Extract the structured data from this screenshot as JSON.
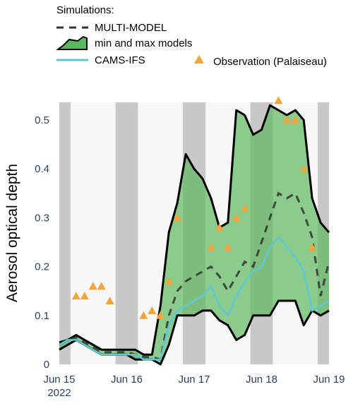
{
  "chart_data": {
    "type": "line",
    "y_label": "Aerosol optical depth",
    "legend_title": "Simulations:",
    "xlim": [
      "2022-06-15T00:00",
      "2022-06-19T00:00"
    ],
    "xticks": [
      {
        "value": "2022-06-15T00:00",
        "label": "Jun 15\n2022"
      },
      {
        "value": "2022-06-16T00:00",
        "label": "Jun 16"
      },
      {
        "value": "2022-06-17T00:00",
        "label": "Jun 17"
      },
      {
        "value": "2022-06-18T00:00",
        "label": "Jun 18"
      },
      {
        "value": "2022-06-19T00:00",
        "label": "Jun 19"
      }
    ],
    "ylim": [
      0,
      0.536
    ],
    "yticks": [
      0,
      0.1,
      0.2,
      0.3,
      0.4,
      0.5
    ],
    "shaded_periods": [
      [
        "2022-06-15T00:00",
        "2022-06-15T04:00"
      ],
      [
        "2022-06-15T20:00",
        "2022-06-16T04:00"
      ],
      [
        "2022-06-16T20:00",
        "2022-06-17T04:00"
      ],
      [
        "2022-06-17T20:00",
        "2022-06-18T04:00"
      ],
      [
        "2022-06-18T20:00",
        "2022-06-19T00:00"
      ]
    ],
    "shade_color": "#c8c8c8",
    "x": [
      "2022-06-15T00:00",
      "2022-06-15T03:00",
      "2022-06-15T06:00",
      "2022-06-15T09:00",
      "2022-06-15T12:00",
      "2022-06-15T15:00",
      "2022-06-15T18:00",
      "2022-06-15T21:00",
      "2022-06-16T00:00",
      "2022-06-16T03:00",
      "2022-06-16T06:00",
      "2022-06-16T09:00",
      "2022-06-16T12:00",
      "2022-06-16T15:00",
      "2022-06-16T18:00",
      "2022-06-16T21:00",
      "2022-06-17T00:00",
      "2022-06-17T03:00",
      "2022-06-17T06:00",
      "2022-06-17T09:00",
      "2022-06-17T12:00",
      "2022-06-17T15:00",
      "2022-06-17T18:00",
      "2022-06-17T21:00",
      "2022-06-18T00:00",
      "2022-06-18T03:00",
      "2022-06-18T06:00",
      "2022-06-18T09:00",
      "2022-06-18T12:00",
      "2022-06-18T15:00",
      "2022-06-18T18:00",
      "2022-06-18T21:00",
      "2022-06-19T00:00"
    ],
    "series": [
      {
        "name": "MULTI-MODEL",
        "kind": "line",
        "dash": true,
        "color": "#333333",
        "values": [
          0.04,
          0.05,
          0.055,
          0.045,
          0.035,
          0.025,
          0.025,
          0.025,
          0.025,
          0.02,
          0.015,
          0.015,
          0.01,
          0.1,
          0.15,
          0.17,
          0.18,
          0.19,
          0.2,
          0.18,
          0.15,
          0.18,
          0.21,
          0.2,
          0.25,
          0.3,
          0.35,
          0.34,
          0.35,
          0.31,
          0.26,
          0.14,
          0.21
        ]
      },
      {
        "name": "min and max models",
        "kind": "band",
        "color": "#5cb85c",
        "line_color": "#000000",
        "upper": [
          0.045,
          0.05,
          0.06,
          0.05,
          0.04,
          0.03,
          0.03,
          0.03,
          0.03,
          0.03,
          0.02,
          0.02,
          0.12,
          0.27,
          0.33,
          0.43,
          0.4,
          0.38,
          0.34,
          0.28,
          0.29,
          0.52,
          0.51,
          0.47,
          0.48,
          0.53,
          0.52,
          0.51,
          0.52,
          0.5,
          0.34,
          0.29,
          0.27
        ],
        "lower": [
          0.03,
          0.04,
          0.05,
          0.04,
          0.03,
          0.02,
          0.02,
          0.02,
          0.02,
          0.01,
          0.01,
          0.01,
          0,
          0.04,
          0.1,
          0.1,
          0.1,
          0.11,
          0.11,
          0.09,
          0.08,
          0.05,
          0.06,
          0.1,
          0.1,
          0.1,
          0.13,
          0.13,
          0.13,
          0.08,
          0.11,
          0.1,
          0.11
        ]
      },
      {
        "name": "CAMS-IFS",
        "kind": "line",
        "color": "#5ec9d6",
        "values": [
          0.04,
          0.05,
          0.05,
          0.04,
          0.03,
          0.02,
          0.02,
          0.02,
          0.02,
          0.02,
          0.01,
          0.01,
          0.01,
          0.08,
          0.11,
          0.12,
          0.13,
          0.14,
          0.16,
          0.12,
          0.1,
          0.14,
          0.17,
          0.19,
          0.2,
          0.24,
          0.26,
          0.24,
          0.22,
          0.19,
          0.11,
          0.12,
          0.13
        ]
      },
      {
        "name": "Observation (Palaiseau)",
        "kind": "marker",
        "color": "#f0a63c",
        "x": [
          "2022-06-15T06:00",
          "2022-06-15T09:00",
          "2022-06-15T12:00",
          "2022-06-15T15:00",
          "2022-06-15T18:00",
          "2022-06-16T06:00",
          "2022-06-16T09:00",
          "2022-06-16T12:00",
          "2022-06-16T15:00",
          "2022-06-16T18:00",
          "2022-06-17T06:00",
          "2022-06-17T09:00",
          "2022-06-17T12:00",
          "2022-06-17T15:00",
          "2022-06-17T18:00",
          "2022-06-18T06:00",
          "2022-06-18T09:00",
          "2022-06-18T12:00",
          "2022-06-18T15:00",
          "2022-06-18T18:00"
        ],
        "values": [
          0.14,
          0.14,
          0.16,
          0.16,
          0.13,
          0.1,
          0.11,
          0.1,
          0.17,
          0.3,
          0.24,
          0.28,
          0.24,
          0.3,
          0.32,
          0.54,
          0.5,
          0.5,
          0.4,
          0.24
        ]
      }
    ]
  }
}
